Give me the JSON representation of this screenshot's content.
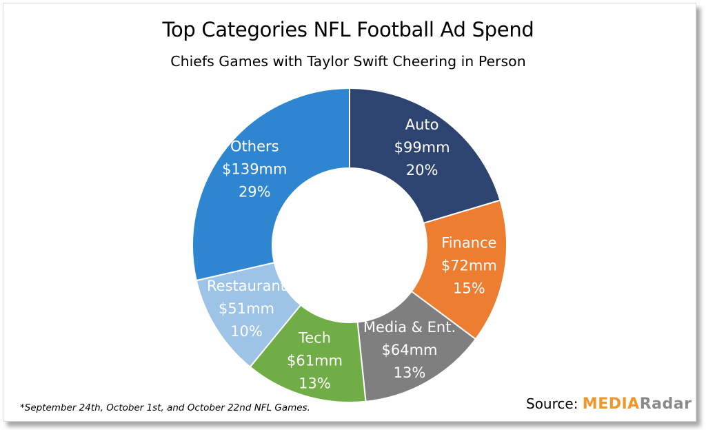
{
  "chart_data": {
    "type": "pie",
    "title": "Top Categories NFL Football Ad Spend",
    "subtitle": "Chiefs Games with Taylor Swift Cheering in Person",
    "donut": true,
    "slices": [
      {
        "label": "Auto",
        "amount": "$99mm",
        "value": 99,
        "percent": "20%",
        "color": "#2c446f",
        "text_color": "#ffffff"
      },
      {
        "label": "Finance",
        "amount": "$72mm",
        "value": 72,
        "percent": "15%",
        "color": "#ed7d31",
        "text_color": "#ffffff"
      },
      {
        "label": "Media & Ent.",
        "amount": "$64mm",
        "value": 64,
        "percent": "13%",
        "color": "#7f7f7f",
        "text_color": "#ffffff"
      },
      {
        "label": "Tech",
        "amount": "$61mm",
        "value": 61,
        "percent": "13%",
        "color": "#70ad47",
        "text_color": "#ffffff"
      },
      {
        "label": "Restaurant",
        "amount": "$51mm",
        "value": 51,
        "percent": "10%",
        "color": "#9dc3e6",
        "text_color": "#ffffff"
      },
      {
        "label": "Others",
        "amount": "$139mm",
        "value": 139,
        "percent": "29%",
        "color": "#2e86d0",
        "text_color": "#ffffff"
      }
    ]
  },
  "footnote": "*September 24th, October 1st, and October 22nd NFL Games.",
  "source_label": "Source:",
  "logo": {
    "part1": "MEDIA",
    "part2": "Radar"
  }
}
